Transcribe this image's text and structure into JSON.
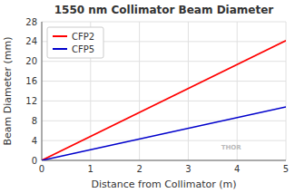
{
  "chart_data": {
    "type": "line",
    "title": "1550 nm Collimator Beam Diameter",
    "xlabel": "Distance from Collimator (m)",
    "ylabel": "Beam Diameter (mm)",
    "x": [
      0,
      5
    ],
    "series": [
      {
        "name": "CFP2",
        "color": "#ff0000",
        "values": [
          0,
          24.2
        ]
      },
      {
        "name": "CFP5",
        "color": "#0000cc",
        "values": [
          0,
          10.8
        ]
      }
    ],
    "xlim": [
      0,
      5
    ],
    "ylim": [
      0,
      28
    ],
    "xticks": [
      0,
      1,
      2,
      3,
      4,
      5
    ],
    "yticks": [
      0,
      4,
      8,
      12,
      16,
      20,
      24,
      28
    ],
    "grid": true,
    "legend": "upper left",
    "annotations": [
      "THOR"
    ]
  }
}
